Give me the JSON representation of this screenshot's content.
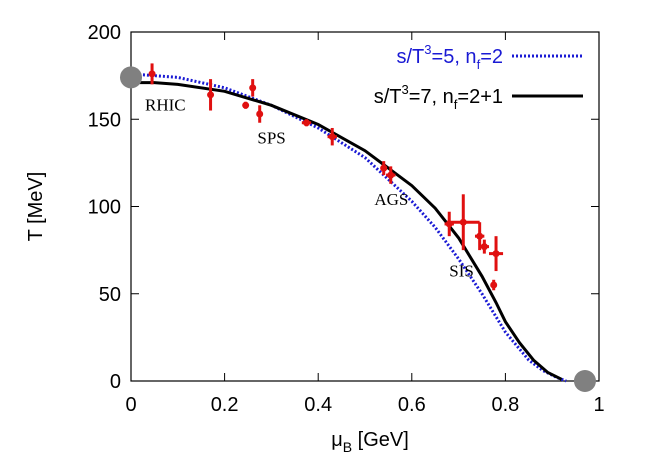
{
  "chart_data": {
    "type": "scatter",
    "xlabel": "μ",
    "xlabel_sub": "B",
    "xlabel_unit": " [GeV]",
    "ylabel": "T [MeV]",
    "xlim": [
      0,
      1
    ],
    "ylim": [
      0,
      200
    ],
    "xticks": [
      0,
      0.2,
      0.4,
      0.6,
      0.8,
      1
    ],
    "xtick_labels": [
      "0",
      "0.2",
      "0.4",
      "0.6",
      "0.8",
      "1"
    ],
    "yticks": [
      0,
      50,
      100,
      150,
      200
    ],
    "ytick_labels": [
      "0",
      "50",
      "100",
      "150",
      "200"
    ],
    "grid": false,
    "legend_position": "top-right",
    "series": [
      {
        "name": "s/T³=5, n_f=2",
        "legend_parts": [
          "s/T",
          "3",
          "=5, n",
          "f",
          "=2"
        ],
        "style": "dotted",
        "color": "#1a1ad4",
        "x": [
          0.0,
          0.1,
          0.2,
          0.3,
          0.4,
          0.5,
          0.6,
          0.65,
          0.7,
          0.75,
          0.8,
          0.85,
          0.88,
          0.91,
          0.93
        ],
        "y": [
          176,
          174,
          168,
          158,
          145,
          128,
          103,
          88,
          70,
          50,
          28,
          12,
          6,
          2,
          0
        ]
      },
      {
        "name": "s/T³=7, n_f=2+1",
        "legend_parts": [
          "s/T",
          "3",
          "=7, n",
          "f",
          "=2+1"
        ],
        "style": "solid",
        "color": "#000000",
        "x": [
          0.0,
          0.05,
          0.1,
          0.2,
          0.3,
          0.4,
          0.5,
          0.6,
          0.65,
          0.7,
          0.75,
          0.78,
          0.8,
          0.83,
          0.86,
          0.89,
          0.92
        ],
        "y": [
          171,
          171,
          170,
          166,
          158,
          147,
          132,
          112,
          99,
          82,
          60,
          45,
          34,
          22,
          12,
          5,
          1
        ]
      }
    ],
    "freezeout_points": {
      "color": "#e01010",
      "points": [
        {
          "x": 0.045,
          "y": 176,
          "xerr": 0.0,
          "yerr": 6
        },
        {
          "x": 0.17,
          "y": 164,
          "xerr": 0.0,
          "yerr": 9
        },
        {
          "x": 0.245,
          "y": 158,
          "xerr": 0.005,
          "yerr": 2
        },
        {
          "x": 0.26,
          "y": 168,
          "xerr": 0.005,
          "yerr": 5
        },
        {
          "x": 0.275,
          "y": 153,
          "xerr": 0.005,
          "yerr": 5
        },
        {
          "x": 0.375,
          "y": 148,
          "xerr": 0.01,
          "yerr": 2
        },
        {
          "x": 0.43,
          "y": 140,
          "xerr": 0.01,
          "yerr": 5
        },
        {
          "x": 0.54,
          "y": 122,
          "xerr": 0.007,
          "yerr": 4
        },
        {
          "x": 0.555,
          "y": 118,
          "xerr": 0.01,
          "yerr": 5
        },
        {
          "x": 0.68,
          "y": 90,
          "xerr": 0.01,
          "yerr": 7
        },
        {
          "x": 0.71,
          "y": 91,
          "xerr": 0.035,
          "yerr": 16
        },
        {
          "x": 0.745,
          "y": 83,
          "xerr": 0.01,
          "yerr": 8
        },
        {
          "x": 0.755,
          "y": 77,
          "xerr": 0.01,
          "yerr": 4
        },
        {
          "x": 0.78,
          "y": 73,
          "xerr": 0.015,
          "yerr": 10
        },
        {
          "x": 0.775,
          "y": 55,
          "xerr": 0.0,
          "yerr": 3
        }
      ]
    },
    "endpoints": {
      "color": "#808080",
      "points": [
        {
          "x": 0.0,
          "y": 174
        },
        {
          "x": 0.97,
          "y": 0
        }
      ]
    },
    "annotations": [
      {
        "text": "RHIC",
        "x": 0.03,
        "y": 155
      },
      {
        "text": "SPS",
        "x": 0.27,
        "y": 136
      },
      {
        "text": "AGS",
        "x": 0.52,
        "y": 101
      },
      {
        "text": "SIS",
        "x": 0.68,
        "y": 60
      }
    ]
  }
}
